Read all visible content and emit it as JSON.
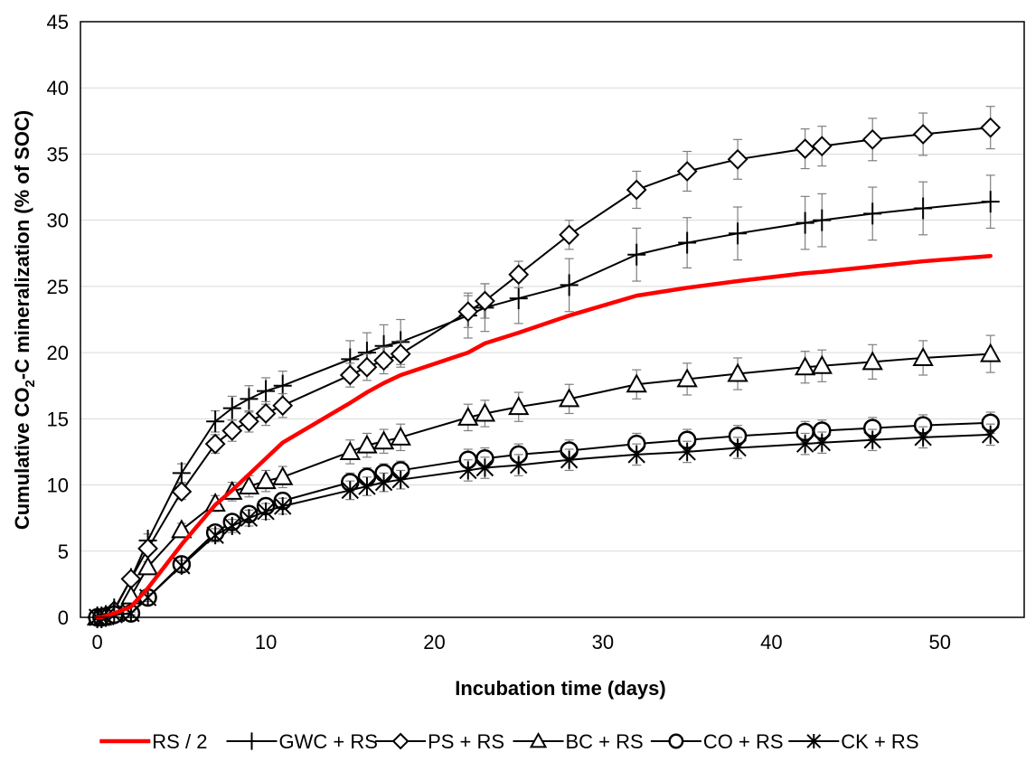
{
  "chart_data": {
    "type": "line",
    "title": "",
    "xlabel": "Incubation time (days)",
    "ylabel_parts": [
      "Cumulative CO",
      "2",
      "-C mineralization (% of SOC)"
    ],
    "xlim": [
      -1,
      55
    ],
    "ylim": [
      0,
      45
    ],
    "xticks": [
      0,
      10,
      20,
      30,
      40,
      50
    ],
    "yticks": [
      0,
      5,
      10,
      15,
      20,
      25,
      30,
      35,
      40,
      45
    ],
    "grid": "horizontal",
    "legend_position": "bottom",
    "x": [
      0,
      0.25,
      0.5,
      1,
      2,
      3,
      5,
      7,
      8,
      9,
      10,
      11,
      15,
      16,
      17,
      18,
      22,
      23,
      25,
      28,
      32,
      35,
      38,
      42,
      43,
      46,
      49,
      53
    ],
    "series": [
      {
        "name": "RS / 2",
        "color": "#ff0000",
        "marker": "none",
        "values": [
          0,
          0,
          0.1,
          0.3,
          0.8,
          2.2,
          5.5,
          8.5,
          9.6,
          10.8,
          12.0,
          13.2,
          16.2,
          17.0,
          17.7,
          18.3,
          20.0,
          20.7,
          21.5,
          22.8,
          24.3,
          24.9,
          25.4,
          26.0,
          26.1,
          26.5,
          26.9,
          27.3
        ],
        "error": null
      },
      {
        "name": "GWC + RS",
        "color": "#000000",
        "marker": "plus",
        "values": [
          0,
          0,
          0.1,
          0.6,
          2.9,
          5.8,
          10.9,
          14.8,
          15.8,
          16.5,
          17.1,
          17.5,
          19.5,
          20.0,
          20.5,
          20.8,
          22.8,
          23.4,
          24.1,
          25.1,
          27.4,
          28.3,
          29.0,
          29.8,
          30.0,
          30.5,
          30.9,
          31.4
        ],
        "error": [
          0,
          0,
          0,
          0.2,
          0.3,
          0.5,
          0.7,
          0.8,
          0.9,
          1.0,
          1.0,
          1.1,
          1.4,
          1.5,
          1.6,
          1.7,
          1.7,
          1.8,
          1.9,
          2.0,
          2.0,
          1.9,
          2.0,
          2.0,
          2.0,
          2.0,
          2.0,
          2.0
        ]
      },
      {
        "name": "PS + RS",
        "color": "#000000",
        "marker": "diamond",
        "values": [
          0,
          0,
          0.1,
          0.5,
          2.9,
          5.2,
          9.5,
          13.1,
          14.1,
          14.8,
          15.4,
          16.0,
          18.3,
          18.9,
          19.4,
          19.9,
          23.1,
          23.9,
          25.9,
          28.9,
          32.3,
          33.7,
          34.6,
          35.4,
          35.6,
          36.1,
          36.5,
          37.0
        ],
        "error": [
          0,
          0,
          0,
          0.2,
          0.3,
          0.4,
          0.6,
          0.7,
          0.8,
          0.8,
          0.9,
          0.9,
          0.9,
          1.0,
          1.0,
          1.0,
          1.2,
          1.3,
          1.0,
          1.1,
          1.4,
          1.5,
          1.5,
          1.5,
          1.5,
          1.6,
          1.6,
          1.6
        ]
      },
      {
        "name": "BC + RS",
        "color": "#000000",
        "marker": "triangle",
        "values": [
          0,
          0,
          0.1,
          0.3,
          1.6,
          3.8,
          6.6,
          8.6,
          9.5,
          9.9,
          10.3,
          10.6,
          12.5,
          13.0,
          13.3,
          13.6,
          15.1,
          15.4,
          15.9,
          16.5,
          17.6,
          18.0,
          18.4,
          18.9,
          19.0,
          19.3,
          19.6,
          19.9
        ],
        "error": [
          0,
          0,
          0,
          0.1,
          0.2,
          0.4,
          0.5,
          0.6,
          0.7,
          0.8,
          0.8,
          0.8,
          0.9,
          0.9,
          0.9,
          1.0,
          1.0,
          1.0,
          1.1,
          1.1,
          1.1,
          1.2,
          1.2,
          1.2,
          1.2,
          1.3,
          1.3,
          1.4
        ]
      },
      {
        "name": "CO + RS",
        "color": "#000000",
        "marker": "circle",
        "values": [
          0,
          0,
          0.05,
          0.2,
          0.3,
          1.5,
          4.0,
          6.4,
          7.2,
          7.8,
          8.4,
          8.8,
          10.2,
          10.6,
          10.9,
          11.1,
          11.9,
          12.0,
          12.3,
          12.6,
          13.1,
          13.4,
          13.7,
          14.0,
          14.1,
          14.3,
          14.5,
          14.7
        ],
        "error": [
          0,
          0,
          0,
          0.1,
          0.1,
          0.3,
          0.4,
          0.5,
          0.5,
          0.6,
          0.6,
          0.6,
          0.7,
          0.7,
          0.7,
          0.7,
          0.8,
          0.8,
          0.8,
          0.8,
          0.8,
          0.8,
          0.8,
          0.8,
          0.8,
          0.8,
          0.8,
          0.8
        ]
      },
      {
        "name": "CK + RS",
        "color": "#000000",
        "marker": "star",
        "values": [
          0,
          0,
          0.05,
          0.2,
          0.3,
          1.5,
          3.9,
          6.2,
          6.9,
          7.5,
          8.0,
          8.4,
          9.6,
          9.9,
          10.2,
          10.4,
          11.1,
          11.3,
          11.5,
          11.9,
          12.3,
          12.5,
          12.8,
          13.1,
          13.2,
          13.4,
          13.6,
          13.8
        ],
        "error": [
          0,
          0,
          0,
          0.1,
          0.1,
          0.3,
          0.4,
          0.5,
          0.5,
          0.6,
          0.6,
          0.6,
          0.7,
          0.7,
          0.7,
          0.7,
          0.8,
          0.8,
          0.8,
          0.8,
          0.8,
          0.8,
          0.8,
          0.8,
          0.8,
          0.8,
          0.8,
          0.8
        ]
      }
    ]
  }
}
